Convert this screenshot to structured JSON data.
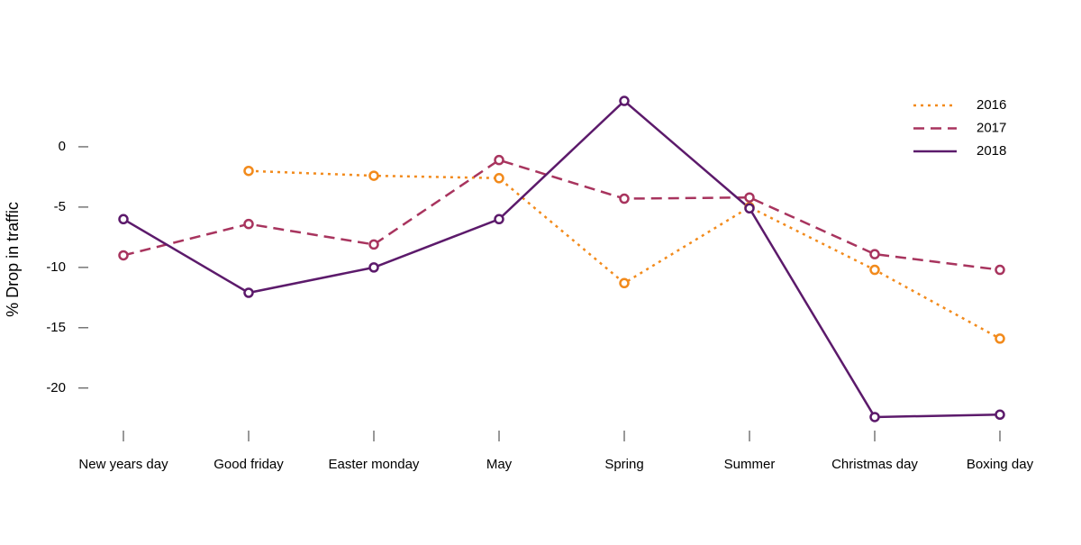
{
  "chart_data": {
    "type": "line",
    "y_label": "% Drop in traffic",
    "categories": [
      "New years day",
      "Good friday",
      "Easter monday",
      "May",
      "Spring",
      "Summer",
      "Christmas day",
      "Boxing day"
    ],
    "series": [
      {
        "name": "2016",
        "color": "#f28a1b",
        "linestyle": "dotted",
        "values": [
          null,
          -2.0,
          -2.4,
          -2.6,
          -11.3,
          -5.0,
          -10.2,
          -15.9
        ]
      },
      {
        "name": "2017",
        "color": "#a8345e",
        "linestyle": "dashed",
        "values": [
          -9.0,
          -6.4,
          -8.1,
          -1.1,
          -4.3,
          -4.2,
          -8.9,
          -10.2
        ]
      },
      {
        "name": "2018",
        "color": "#5c1a6b",
        "linestyle": "solid",
        "values": [
          -6.0,
          -12.1,
          -10.0,
          -6.0,
          3.8,
          -5.1,
          -22.4,
          -22.2
        ]
      }
    ],
    "ylim": [
      -23.45,
      4.85
    ],
    "yticks": [
      0,
      -5,
      -10,
      -15,
      -20
    ],
    "legend": "top-right",
    "markers": "open-circle"
  }
}
